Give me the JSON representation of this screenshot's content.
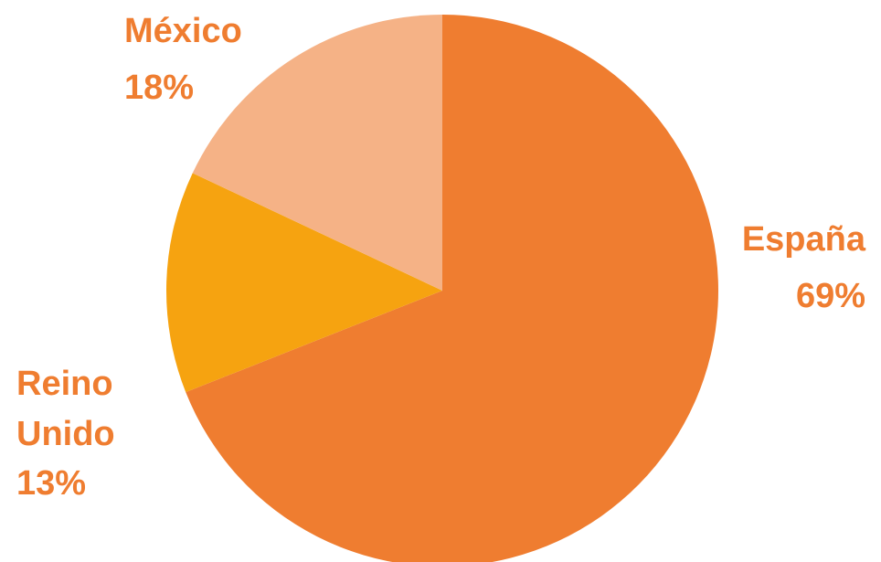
{
  "chart_data": {
    "type": "pie",
    "start_angle_deg": 0,
    "direction": "clockwise",
    "label_color": "#ef7d30",
    "slices": [
      {
        "label": "España",
        "value": 69,
        "value_label": "69%",
        "color": "#ef7d30"
      },
      {
        "label": "Reino Unido",
        "value": 13,
        "value_label": "13%",
        "color": "#f6a310"
      },
      {
        "label": "México",
        "value": 18,
        "value_label": "18%",
        "color": "#f5b286"
      }
    ]
  }
}
